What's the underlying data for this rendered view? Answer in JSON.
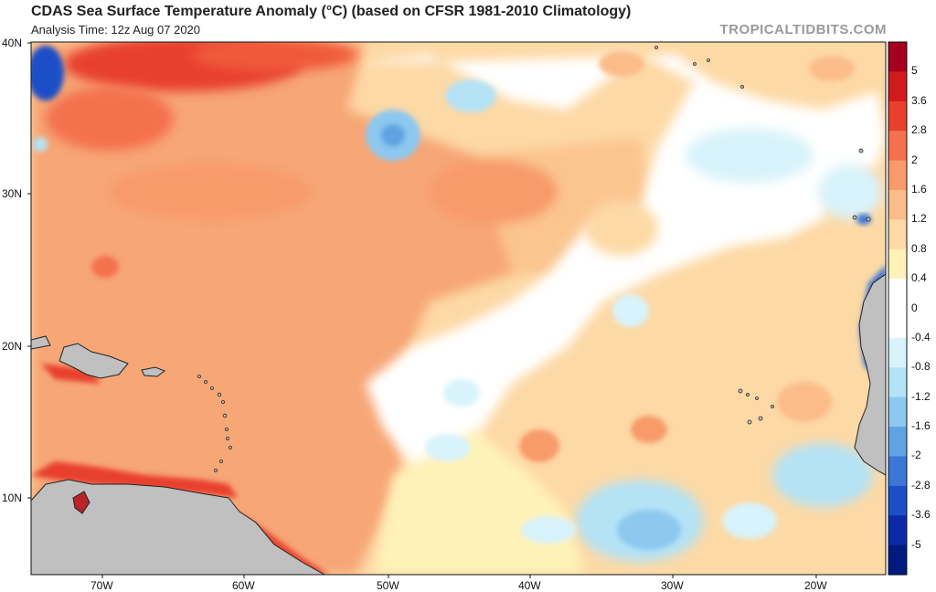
{
  "header": {
    "title": "CDAS Sea Surface Temperature Anomaly (°C) (based on CFSR 1981-2010 Climatology)",
    "subtitle": "Analysis Time: 12z Aug 07 2020",
    "brand": "TROPICALTIDBITS.COM"
  },
  "axes": {
    "lat_labels": [
      "40N",
      "30N",
      "20N",
      "10N"
    ],
    "lon_labels": [
      "70W",
      "60W",
      "50W",
      "40W",
      "30W",
      "20W"
    ]
  },
  "colorbar": {
    "labels": [
      "5",
      "3.6",
      "2.8",
      "2",
      "1.6",
      "1.2",
      "0.8",
      "0.4",
      "0",
      "-0.4",
      "-0.8",
      "-1.2",
      "-1.6",
      "-2",
      "-2.8",
      "-3.6",
      "-5"
    ],
    "colors": [
      "#a50021",
      "#d2191c",
      "#e8402f",
      "#f4714d",
      "#f89a6b",
      "#fbbc8a",
      "#fdd9a5",
      "#fff2b8",
      "#ffffff",
      "#ffffff",
      "#d8f3fb",
      "#b4e3f6",
      "#8cc8ef",
      "#5fa3e3",
      "#3c76d6",
      "#1c4fc7",
      "#0a2aa8",
      "#001a80"
    ]
  },
  "colors": {
    "land": "#c0c0c0",
    "coast": "#222222"
  }
}
